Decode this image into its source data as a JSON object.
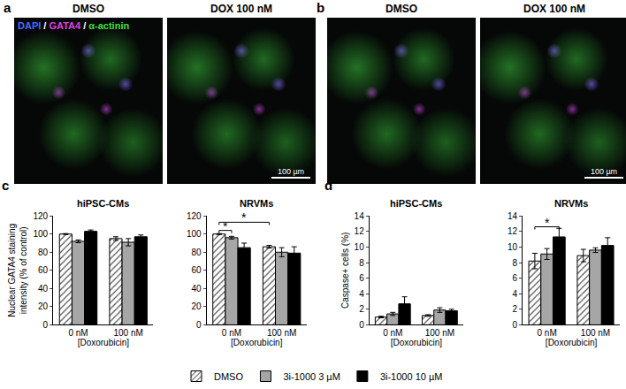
{
  "figure": {
    "image_panels": [
      {
        "panel": "a",
        "images": [
          {
            "label": "DMSO"
          },
          {
            "label": "DOX 100 nM",
            "scale_bar": "100 µm"
          }
        ],
        "stain_legend": [
          {
            "text": "DAPI",
            "color": "#4a6bff"
          },
          {
            "text": "GATA4",
            "color": "#e040e0"
          },
          {
            "text": "α-actinin",
            "color": "#3ee03e"
          }
        ],
        "separator": " / "
      },
      {
        "panel": "b",
        "images": [
          {
            "label": "DMSO"
          },
          {
            "label": "DOX 100 nM",
            "scale_bar": "100 µm"
          }
        ]
      }
    ]
  },
  "chart_data": [
    {
      "type": "bar",
      "panel": "c",
      "title": "hiPSC-CMs",
      "y_label": [
        "Nuclear GATA4 staining",
        "intensity (% of control)"
      ],
      "x_label": "[Doxorubicin]",
      "categories": [
        "0 nM",
        "100 nM"
      ],
      "series": [
        {
          "name": "DMSO",
          "color": "#ffffff",
          "marker": "hatched",
          "values": [
            100,
            95
          ],
          "errors": [
            0.5,
            2
          ]
        },
        {
          "name": "3i-1000 3 µM",
          "color": "#a6a6a6",
          "values": [
            92,
            91
          ],
          "errors": [
            1.5,
            4
          ]
        },
        {
          "name": "3i-1000 10 µM",
          "color": "#000000",
          "values": [
            103,
            97
          ],
          "errors": [
            1.5,
            2
          ]
        }
      ],
      "ylim": [
        0,
        120
      ],
      "yticks": [
        0,
        20,
        40,
        60,
        80,
        100,
        120
      ],
      "legend": "bottom"
    },
    {
      "type": "bar",
      "title": "NRVMs",
      "x_label": "[Doxorubicin]",
      "categories": [
        "0 nM",
        "100 nM"
      ],
      "series": [
        {
          "name": "DMSO",
          "color": "#ffffff",
          "marker": "hatched",
          "values": [
            100,
            86
          ],
          "errors": [
            0.5,
            1.5
          ]
        },
        {
          "name": "3i-1000 3 µM",
          "color": "#a6a6a6",
          "values": [
            96,
            80
          ],
          "errors": [
            1.5,
            5
          ]
        },
        {
          "name": "3i-1000 10 µM",
          "color": "#000000",
          "values": [
            85,
            79
          ],
          "errors": [
            5,
            7
          ]
        }
      ],
      "ylim": [
        0,
        120
      ],
      "yticks": [
        0,
        20,
        40,
        60,
        80,
        100,
        120
      ],
      "significance": [
        {
          "from": {
            "category": 0,
            "series": 0
          },
          "to": {
            "category": 0,
            "series": 1
          },
          "y": 104,
          "label": "*"
        },
        {
          "from": {
            "category": 0,
            "series": 0
          },
          "to": {
            "category": 1,
            "series": 0
          },
          "y": 113,
          "label": "*"
        }
      ]
    },
    {
      "type": "bar",
      "panel": "d",
      "title": "hiPSC-CMs",
      "y_label": [
        "Caspase+ cells (%)"
      ],
      "x_label": "[Doxorubicin]",
      "categories": [
        "0 nM",
        "100 nM"
      ],
      "series": [
        {
          "name": "DMSO",
          "color": "#ffffff",
          "marker": "hatched",
          "values": [
            1.0,
            1.2
          ],
          "errors": [
            0.1,
            0.1
          ]
        },
        {
          "name": "3i-1000 3 µM",
          "color": "#a6a6a6",
          "values": [
            1.4,
            1.9
          ],
          "errors": [
            0.2,
            0.3
          ]
        },
        {
          "name": "3i-1000 10 µM",
          "color": "#000000",
          "values": [
            2.7,
            1.8
          ],
          "errors": [
            0.9,
            0.2
          ]
        }
      ],
      "ylim": [
        0,
        14
      ],
      "yticks": [
        0,
        2,
        4,
        6,
        8,
        10,
        12,
        14
      ]
    },
    {
      "type": "bar",
      "title": "NRVMs",
      "x_label": "[Doxorubicin]",
      "categories": [
        "0 nM",
        "100 nM"
      ],
      "series": [
        {
          "name": "DMSO",
          "color": "#ffffff",
          "marker": "hatched",
          "values": [
            8.2,
            8.9
          ],
          "errors": [
            1.0,
            0.8
          ]
        },
        {
          "name": "3i-1000 3 µM",
          "color": "#a6a6a6",
          "values": [
            9.1,
            9.6
          ],
          "errors": [
            0.7,
            0.3
          ]
        },
        {
          "name": "3i-1000 10 µM",
          "color": "#000000",
          "values": [
            11.3,
            10.2
          ],
          "errors": [
            1.1,
            1.0
          ]
        }
      ],
      "ylim": [
        0,
        14
      ],
      "yticks": [
        0,
        2,
        4,
        6,
        8,
        10,
        12,
        14
      ],
      "significance": [
        {
          "from": {
            "category": 0,
            "series": 0
          },
          "to": {
            "category": 0,
            "series": 2
          },
          "y": 12.6,
          "label": "*"
        }
      ]
    }
  ]
}
